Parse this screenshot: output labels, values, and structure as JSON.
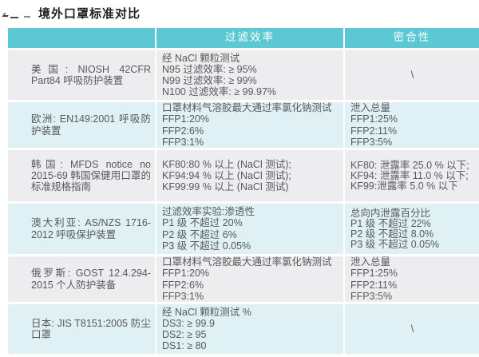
{
  "page": {
    "title": "境外口罩标准对比"
  },
  "colors": {
    "header_bg": "#5CC8D3",
    "row_gray": "#EDEDEF",
    "row_blue": "#DFF1F5",
    "text": "#57595C",
    "header_text": "#FFFFFF",
    "title_text": "#1F1F1F"
  },
  "table": {
    "headers": {
      "standard": "",
      "filtration": "过滤效率",
      "fit": "密合性"
    },
    "rows": [
      {
        "standard": "美国: NIOSH 42CFR Part84 呼吸防护装置",
        "filtration": "经 NaCl 颗粒测试\nN95 过滤效率: ≥ 95%\nN99 过滤效率: ≥ 99%\nN100 过滤效率: ≥ 99.97%",
        "fit": "\\"
      },
      {
        "standard": "欧洲: EN149:2001 呼吸防护装置",
        "filtration": "口罩材料气溶胶最大通过率氯化钠测试\nFFP1:20%\nFFP2:6%\nFFP3:1%",
        "fit": "泄入总量\nFFP1:25%\nFFP2:11%\nFFP3:5%"
      },
      {
        "standard": "韩国: MFDS notice no 2015-69 韩国保健用口罩的标准规格指南",
        "filtration": "KF80:80 % 以上 (NaCl 测试);\nKF94:94 % 以上 (NaCl 测试);\nKF99:99 % 以上 (NaCl 测试)",
        "fit": "KF80: 泄露率 25.0 % 以下;\nKF94: 泄露率 11.0 % 以下;\nKF99:泄露率 5.0 % 以下"
      },
      {
        "standard": "澳大利亚: AS/NZS 1716-2012 呼吸保护装置",
        "filtration": "过滤效率实验:渗透性\nP1 级 不超过 20%\nP2 级 不超过 6%\nP3 级 不超过 0.05%",
        "fit": "总向内泄露百分比\nP1 级 不超过 22%\nP2 级 不超过 8.0%\nP3 级 不超过 0.05%"
      },
      {
        "standard": "俄罗斯: GOST 12.4.294-2015 个人防护装备",
        "filtration": "口罩材料气溶胶最大通过率氯化钠测试\nFFP1:20%\nFFP2:6%\nFFP3:1%",
        "fit": "泄入总量\nFFP1:25%\nFFP2:11%\nFFP3:5%"
      },
      {
        "standard": "日本: JIS T8151:2005 防尘口罩",
        "filtration": "经 NaCl 颗粒测试 %\nDS3: ≥ 99.9\nDS2: ≥ 95\nDS1: ≥ 80",
        "fit": "\\"
      }
    ]
  }
}
